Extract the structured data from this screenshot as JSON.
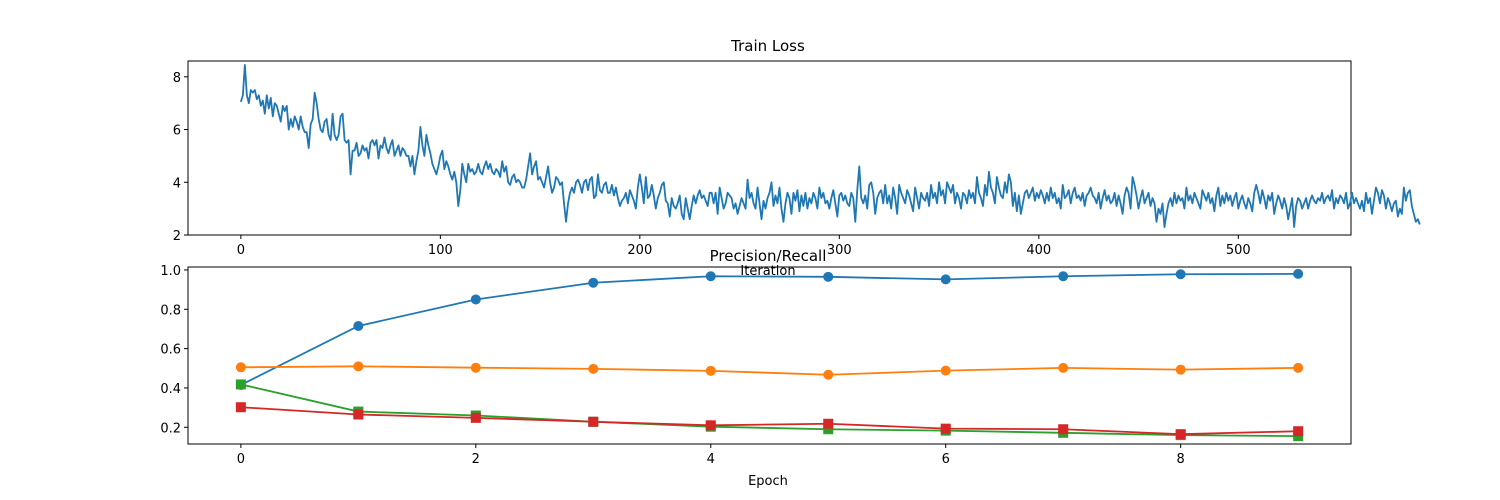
{
  "chart_data": [
    {
      "type": "line",
      "title": "Train Loss",
      "xlabel": "Iteration",
      "ylabel": "",
      "xlim": [
        -26.5,
        556.5
      ],
      "ylim": [
        2.0,
        8.6
      ],
      "xticks": [
        0,
        100,
        200,
        300,
        400,
        500
      ],
      "yticks": [
        2,
        4,
        6,
        8
      ],
      "grid": false,
      "colors": [
        "#1f77b4"
      ],
      "series": [
        {
          "x_start": 0,
          "x_step": 1,
          "values": [
            7.05,
            7.3,
            8.45,
            7.3,
            7.0,
            7.5,
            7.4,
            7.5,
            7.15,
            7.3,
            6.9,
            7.1,
            6.6,
            7.3,
            6.8,
            7.2,
            6.5,
            7.0,
            6.9,
            6.6,
            6.3,
            6.9,
            6.7,
            6.9,
            6.0,
            6.4,
            6.1,
            6.5,
            6.3,
            6.0,
            6.5,
            6.1,
            5.9,
            5.9,
            5.3,
            6.2,
            6.4,
            7.4,
            7.0,
            6.4,
            6.0,
            5.9,
            6.3,
            6.4,
            5.8,
            5.6,
            6.6,
            5.8,
            5.6,
            5.8,
            6.5,
            6.6,
            5.6,
            5.5,
            5.6,
            4.3,
            5.2,
            5.2,
            5.5,
            5.0,
            5.1,
            5.4,
            5.2,
            5.3,
            4.9,
            5.5,
            5.6,
            5.4,
            5.6,
            4.9,
            5.4,
            5.3,
            5.7,
            5.3,
            5.1,
            5.4,
            5.6,
            5.0,
            5.2,
            5.4,
            5.0,
            5.3,
            5.2,
            5.0,
            5.0,
            4.6,
            5.0,
            4.3,
            4.8,
            5.2,
            6.1,
            5.4,
            5.0,
            5.8,
            5.4,
            5.1,
            4.7,
            4.5,
            4.3,
            4.6,
            5.0,
            5.2,
            4.5,
            4.8,
            4.6,
            4.3,
            4.1,
            4.4,
            4.0,
            3.1,
            3.7,
            4.7,
            4.3,
            4.0,
            4.7,
            4.4,
            4.5,
            4.3,
            4.4,
            4.7,
            4.4,
            4.3,
            4.6,
            4.8,
            4.5,
            4.7,
            4.4,
            4.3,
            4.5,
            4.4,
            4.2,
            4.8,
            4.4,
            4.6,
            4.0,
            3.9,
            4.2,
            4.3,
            4.0,
            4.1,
            4.0,
            3.8,
            3.8,
            4.1,
            4.6,
            5.1,
            4.3,
            4.6,
            4.8,
            4.1,
            4.2,
            4.0,
            3.8,
            4.2,
            4.6,
            4.0,
            3.6,
            3.8,
            4.2,
            4.1,
            3.9,
            4.0,
            3.2,
            2.5,
            3.2,
            3.6,
            3.8,
            3.6,
            4.0,
            4.1,
            3.9,
            3.6,
            4.0,
            4.1,
            3.7,
            4.1,
            4.2,
            3.4,
            3.5,
            4.3,
            3.7,
            3.6,
            3.9,
            4.0,
            3.6,
            3.6,
            3.9,
            3.5,
            3.8,
            3.4,
            3.1,
            3.3,
            3.4,
            3.6,
            3.2,
            3.7,
            3.5,
            3.3,
            3.0,
            3.8,
            4.3,
            3.8,
            3.2,
            4.2,
            3.4,
            3.5,
            3.9,
            3.5,
            3.0,
            3.4,
            3.6,
            3.9,
            4.0,
            3.3,
            3.2,
            2.7,
            3.4,
            3.1,
            3.0,
            3.2,
            3.5,
            2.8,
            2.6,
            3.4,
            3.0,
            2.6,
            3.1,
            3.5,
            3.2,
            3.5,
            3.7,
            3.4,
            3.5,
            3.3,
            3.1,
            3.6,
            3.6,
            3.2,
            3.6,
            2.8,
            3.8,
            3.4,
            3.0,
            3.2,
            3.6,
            3.5,
            3.4,
            3.0,
            3.2,
            2.8,
            3.1,
            3.4,
            3.2,
            3.0,
            4.1,
            3.4,
            3.6,
            3.2,
            3.0,
            3.8,
            3.2,
            2.6,
            3.3,
            3.0,
            3.4,
            3.6,
            4.0,
            3.1,
            3.5,
            3.2,
            3.8,
            3.0,
            2.5,
            3.2,
            3.6,
            3.4,
            2.8,
            3.6,
            3.3,
            3.7,
            2.9,
            3.5,
            3.1,
            3.6,
            3.0,
            3.4,
            3.2,
            3.6,
            3.4,
            3.0,
            3.8,
            3.4,
            3.6,
            3.2,
            3.3,
            3.0,
            3.4,
            3.7,
            3.2,
            2.7,
            3.5,
            3.6,
            3.3,
            3.5,
            3.2,
            3.1,
            3.6,
            3.4,
            2.5,
            3.7,
            4.6,
            3.4,
            3.2,
            3.5,
            3.0,
            3.9,
            4.0,
            3.6,
            2.8,
            3.4,
            3.6,
            3.7,
            3.2,
            3.9,
            3.2,
            3.5,
            3.0,
            3.8,
            3.4,
            2.8,
            3.9,
            3.6,
            3.4,
            3.2,
            3.7,
            3.5,
            3.2,
            2.9,
            3.8,
            3.4,
            3.0,
            3.6,
            3.4,
            3.3,
            3.6,
            3.1,
            3.9,
            3.4,
            3.6,
            3.2,
            4.0,
            3.5,
            3.7,
            3.2,
            4.0,
            3.8,
            3.6,
            3.9,
            3.2,
            3.6,
            3.4,
            3.0,
            3.6,
            3.5,
            3.2,
            3.7,
            3.4,
            3.6,
            3.2,
            4.2,
            3.6,
            3.4,
            3.1,
            3.9,
            3.5,
            4.4,
            3.8,
            3.6,
            3.2,
            4.2,
            3.8,
            3.5,
            3.4,
            4.0,
            3.6,
            4.3,
            4.0,
            3.1,
            3.6,
            2.9,
            3.5,
            2.8,
            3.2,
            3.6,
            3.7,
            3.4,
            3.6,
            3.8,
            3.3,
            3.6,
            3.4,
            3.7,
            3.5,
            3.2,
            3.6,
            3.3,
            3.8,
            3.4,
            3.6,
            3.2,
            3.4,
            3.0,
            3.9,
            3.4,
            3.5,
            3.7,
            3.2,
            3.6,
            3.8,
            3.4,
            3.5,
            3.3,
            3.6,
            3.1,
            3.5,
            3.6,
            3.8,
            3.5,
            3.4,
            3.2,
            3.6,
            3.0,
            3.4,
            3.7,
            3.3,
            3.5,
            3.2,
            3.3,
            3.6,
            3.1,
            3.5,
            3.2,
            2.8,
            3.5,
            3.8,
            3.6,
            3.0,
            4.2,
            3.9,
            3.5,
            3.0,
            3.4,
            3.7,
            3.2,
            3.4,
            3.6,
            3.1,
            3.4,
            3.2,
            2.5,
            3.0,
            2.8,
            3.2,
            2.3,
            2.8,
            3.2,
            3.4,
            3.1,
            3.6,
            3.2,
            3.5,
            3.3,
            3.4,
            3.0,
            3.8,
            3.3,
            3.5,
            3.2,
            3.6,
            3.4,
            3.2,
            3.0,
            3.7,
            3.5,
            3.3,
            3.6,
            3.2,
            3.4,
            2.9,
            3.5,
            3.8,
            3.1,
            3.5,
            3.2,
            3.6,
            3.3,
            3.5,
            3.1,
            3.4,
            3.6,
            3.0,
            3.3,
            3.5,
            3.2,
            3.0,
            3.4,
            3.2,
            2.9,
            3.6,
            3.9,
            3.6,
            3.2,
            3.7,
            3.4,
            3.0,
            3.5,
            3.3,
            3.6,
            2.8,
            3.2,
            3.5,
            3.3,
            3.0,
            3.4,
            3.1,
            2.6,
            3.0,
            3.4,
            2.3,
            3.1,
            3.4,
            3.3,
            3.0,
            3.2,
            3.4,
            3.0,
            3.3,
            3.5,
            3.3,
            3.2,
            3.4,
            3.3,
            3.6,
            3.2,
            3.4,
            3.5,
            3.3,
            3.7,
            3.0,
            3.4,
            3.2,
            3.5,
            3.4,
            3.2,
            3.6,
            3.0,
            3.2,
            3.6,
            3.2,
            3.4,
            3.2,
            3.0,
            3.3,
            2.9,
            3.6,
            3.2,
            3.4,
            2.8,
            3.3,
            3.8,
            3.6,
            3.2,
            3.7,
            3.5,
            3.0,
            3.4,
            3.2,
            2.9,
            3.2,
            3.3,
            2.7,
            3.0,
            2.8,
            3.8,
            3.3,
            3.6,
            3.7,
            3.1,
            2.8,
            2.5,
            2.6,
            2.4
          ]
        }
      ]
    },
    {
      "type": "line",
      "title": "Precision/Recall",
      "xlabel": "Epoch",
      "ylabel": "",
      "xlim": [
        -0.45,
        9.45
      ],
      "ylim": [
        0.115,
        1.015
      ],
      "xticks": [
        0,
        2,
        4,
        6,
        8
      ],
      "yticks": [
        0.2,
        0.4,
        0.6,
        0.8,
        1.0
      ],
      "grid": false,
      "colors": [
        "#1f77b4",
        "#ff7f0e",
        "#2ca02c",
        "#d62728"
      ],
      "x": [
        0,
        1,
        2,
        3,
        4,
        5,
        6,
        7,
        8,
        9
      ],
      "series": [
        {
          "marker": "circle",
          "values": [
            0.415,
            0.715,
            0.85,
            0.935,
            0.968,
            0.965,
            0.952,
            0.968,
            0.978,
            0.98
          ]
        },
        {
          "marker": "circle",
          "values": [
            0.505,
            0.51,
            0.503,
            0.497,
            0.487,
            0.467,
            0.488,
            0.502,
            0.493,
            0.502
          ]
        },
        {
          "marker": "square",
          "values": [
            0.418,
            0.28,
            0.26,
            0.228,
            0.203,
            0.19,
            0.183,
            0.172,
            0.16,
            0.155
          ]
        },
        {
          "marker": "square",
          "values": [
            0.302,
            0.265,
            0.248,
            0.228,
            0.21,
            0.218,
            0.193,
            0.19,
            0.165,
            0.18
          ]
        }
      ]
    }
  ]
}
